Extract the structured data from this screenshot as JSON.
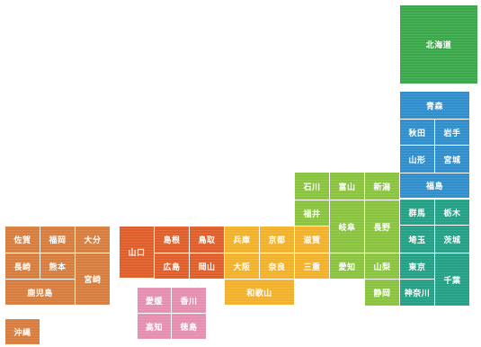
{
  "regions": {
    "hokkaido": {
      "color": "#3aa84a",
      "prefectures": [
        "北海道"
      ]
    },
    "tohoku": {
      "color": "#2f8ecb",
      "prefectures": [
        "青森",
        "秋田",
        "岩手",
        "山形",
        "宮城",
        "福島"
      ]
    },
    "kanto": {
      "color": "#23a086",
      "prefectures": [
        "群馬",
        "栃木",
        "埼玉",
        "茨城",
        "東京",
        "千葉",
        "神奈川"
      ]
    },
    "chubu": {
      "color": "#8ac43f",
      "prefectures": [
        "石川",
        "富山",
        "新潟",
        "福井",
        "岐阜",
        "長野",
        "愛知",
        "山梨",
        "静岡"
      ]
    },
    "kinki": {
      "color": "#f2b12b",
      "prefectures": [
        "兵庫",
        "京都",
        "滋賀",
        "大阪",
        "奈良",
        "三重",
        "和歌山"
      ]
    },
    "chugoku": {
      "color": "#e05e2a",
      "prefectures": [
        "山口",
        "島根",
        "鳥取",
        "広島",
        "岡山"
      ]
    },
    "shikoku": {
      "color": "#e58fb0",
      "prefectures": [
        "愛媛",
        "香川",
        "高知",
        "徳島"
      ]
    },
    "kyushu": {
      "color": "#d77d3d",
      "prefectures": [
        "佐賀",
        "福岡",
        "大分",
        "長崎",
        "熊本",
        "宮崎",
        "鹿児島",
        "沖縄"
      ]
    }
  }
}
